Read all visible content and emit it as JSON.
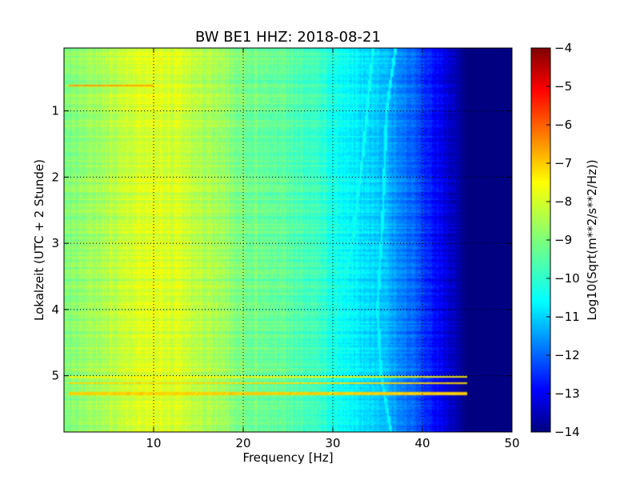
{
  "chart_data": {
    "type": "heatmap",
    "title": "BW BE1 HHZ: 2018-08-21",
    "xlabel": "Frequency [Hz]",
    "ylabel": "Lokalzeit (UTC + 2 Stunde)",
    "xlim": [
      0,
      50
    ],
    "ylim": [
      5.85,
      0.05
    ],
    "y_inverted": true,
    "x_ticks": [
      10,
      20,
      30,
      40,
      50
    ],
    "y_ticks": [
      1,
      2,
      3,
      4,
      5
    ],
    "grid": true,
    "colorbar": {
      "label": "Log10(Sqrt(m**2/s**2/Hz))",
      "colormap": "jet",
      "range": [
        -14,
        -4
      ],
      "ticks": [
        -4,
        -5,
        -6,
        -7,
        -8,
        -9,
        -10,
        -11,
        -12,
        -13,
        -14
      ]
    },
    "spectral_profile": [
      {
        "frequency": 0.5,
        "value": -9.0
      },
      {
        "frequency": 5,
        "value": -8.5
      },
      {
        "frequency": 10,
        "value": -8.0
      },
      {
        "frequency": 13,
        "value": -8.2
      },
      {
        "frequency": 20,
        "value": -9.0
      },
      {
        "frequency": 28,
        "value": -9.6
      },
      {
        "frequency": 31,
        "value": -10.2
      },
      {
        "frequency": 34,
        "value": -10.6
      },
      {
        "frequency": 37,
        "value": -11.2
      },
      {
        "frequency": 39,
        "value": -11.8
      },
      {
        "frequency": 41,
        "value": -12.5
      },
      {
        "frequency": 43,
        "value": -13.2
      },
      {
        "frequency": 45,
        "value": -14.0
      },
      {
        "frequency": 50,
        "value": -14.0
      }
    ],
    "features": [
      {
        "type": "band",
        "time": 0.62,
        "freq_range": [
          0.5,
          10
        ],
        "value": -6.8
      },
      {
        "type": "band",
        "time": 5.02,
        "freq_range": [
          0.5,
          45
        ],
        "value": -7.7
      },
      {
        "type": "band",
        "time": 5.12,
        "freq_range": [
          0.5,
          45
        ],
        "value": -7.4
      },
      {
        "type": "band",
        "time": 5.27,
        "freq_range": [
          0.5,
          45
        ],
        "value": -7.3
      },
      {
        "type": "line",
        "points": [
          [
            37.0,
            0.05
          ],
          [
            36.0,
            1.0
          ],
          [
            35.6,
            2.5
          ],
          [
            35.0,
            4.0
          ],
          [
            35.4,
            5.0
          ],
          [
            36.5,
            5.85
          ]
        ],
        "value": -10.3
      },
      {
        "type": "line",
        "points": [
          [
            34.5,
            0.05
          ],
          [
            33.5,
            1.5
          ],
          [
            32.2,
            3.0
          ],
          [
            29.8,
            4.5
          ],
          [
            29.0,
            5.85
          ]
        ],
        "value": -10.1
      }
    ]
  }
}
